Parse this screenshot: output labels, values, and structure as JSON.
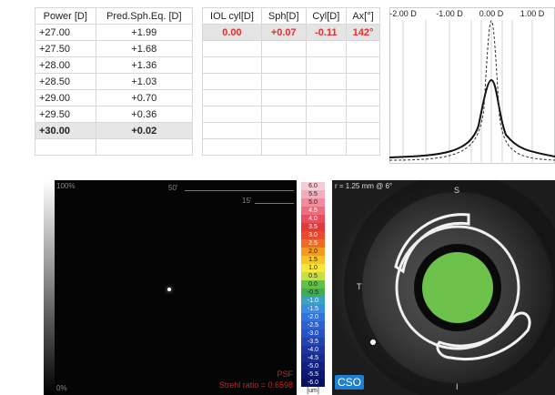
{
  "refraction_table": {
    "headers": [
      "Power [D]",
      "Pred.Sph.Eq. [D]"
    ],
    "rows": [
      [
        "+27.00",
        "+1.99"
      ],
      [
        "+27.50",
        "+1.68"
      ],
      [
        "+28.00",
        "+1.36"
      ],
      [
        "+28.50",
        "+1.03"
      ],
      [
        "+29.00",
        "+0.70"
      ],
      [
        "+29.50",
        "+0.36"
      ],
      [
        "+30.00",
        "+0.02"
      ]
    ]
  },
  "astig_table": {
    "headers": [
      "IOL cyl[D]",
      "Sph[D]",
      "Cyl[D]",
      "Ax[°]"
    ],
    "rows": [
      [
        "0.00",
        "+0.07",
        "-0.11",
        "142°"
      ]
    ]
  },
  "defocus_curve": {
    "xticks": [
      "-2.00 D",
      "-1.00 D",
      "0.00 D",
      "1.00 D"
    ]
  },
  "psf_panel": {
    "top_label": "100%",
    "bottom_label": "0%",
    "ring_labels": [
      "50'",
      "15'"
    ],
    "name": "PSF",
    "strehl": "Strehl ratio = 0.6598"
  },
  "color_scale": {
    "labels": [
      "6.0",
      "5.5",
      "5.0",
      "4.5",
      "4.0",
      "3.5",
      "3.0",
      "2.5",
      "2.0",
      "1.5",
      "1.0",
      "0.5",
      "0.0",
      "-0.5",
      "-1.0",
      "-1.5",
      "-2.0",
      "-2.5",
      "-3.0",
      "-3.5",
      "-4.0",
      "-4.5",
      "-5.0",
      "-5.5",
      "-6.0"
    ],
    "colors": [
      "#f6cdd6",
      "#f3aebb",
      "#f08c9c",
      "#ec6e7e",
      "#e84e5e",
      "#e63838",
      "#e94a2c",
      "#ef6c22",
      "#f49a20",
      "#f8c424",
      "#f6e63a",
      "#c8df42",
      "#62c046",
      "#3fae52",
      "#3aa0c4",
      "#3a8ce0",
      "#3272dc",
      "#2c62d0",
      "#2852c4",
      "#2443b0",
      "#1e35a0",
      "#182a90",
      "#122080",
      "#0c1870",
      "#061060"
    ],
    "unit": "[um]"
  },
  "topography": {
    "radius_label": "r = 1.25 mm @ 6°",
    "superior": "S",
    "temporal": "T",
    "inferior": "I",
    "logo": "CSO"
  }
}
